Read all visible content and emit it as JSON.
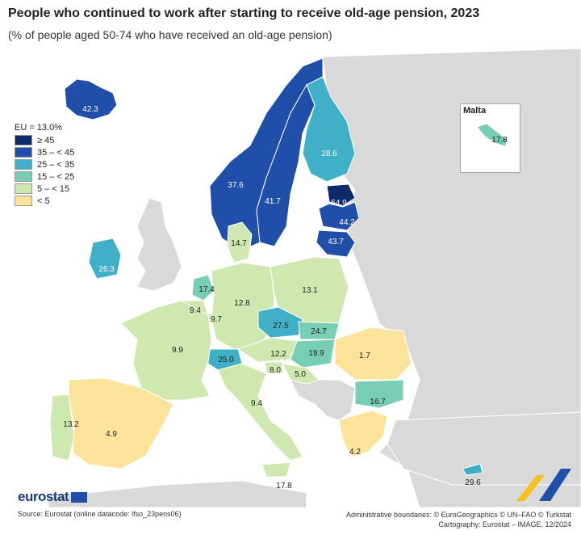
{
  "title": "People who continued to work after starting to receive old-age pension, 2023",
  "subtitle": "(% of people aged 50-74 who have received an old-age pension)",
  "legend": {
    "title": "EU = 13.0%",
    "classes": [
      {
        "label": "≥ 45",
        "color": "#0d2a6b"
      },
      {
        "label": "35 – < 45",
        "color": "#1f4fa8"
      },
      {
        "label": "25 – < 35",
        "color": "#3fb0c8"
      },
      {
        "label": "15 – < 25",
        "color": "#78cdb5"
      },
      {
        "label": "5 – < 15",
        "color": "#cfe8b0"
      },
      {
        "label": "< 5",
        "color": "#fbe49a"
      }
    ]
  },
  "values": {
    "iceland": "42.3",
    "norway": "37.6",
    "sweden": "41.7",
    "finland": "28.6",
    "estonia": "54.9",
    "latvia": "44.2",
    "lithuania": "43.7",
    "ireland": "26.3",
    "denmark": "14.7",
    "netherlands": "17.4",
    "belgium": "9.4",
    "luxembourg": "9.7",
    "germany": "12.8",
    "poland": "13.1",
    "czechia": "27.5",
    "slovakia": "24.7",
    "austria": "12.2",
    "hungary": "19.9",
    "switzerland": "25.0",
    "slovenia": "8.0",
    "croatia": "5.0",
    "romania": "1.7",
    "bulgaria": "16.7",
    "france": "9.9",
    "italy": "9.4",
    "portugal": "13.2",
    "spain": "4.9",
    "greece": "4.2",
    "malta_sicily": "17.8",
    "cyprus": "29.6",
    "malta": "17.8"
  },
  "malta_inset_title": "Malta",
  "brand": "eurostat",
  "source": "Source: Eurostat (online datacode: lfso_23pens06)",
  "credits_line1": "Administrative boundaries: © EuroGeographics © UN–FAO © Turkstat",
  "credits_line2": "Cartography: Eurostat – IMAGE, 12/2024"
}
